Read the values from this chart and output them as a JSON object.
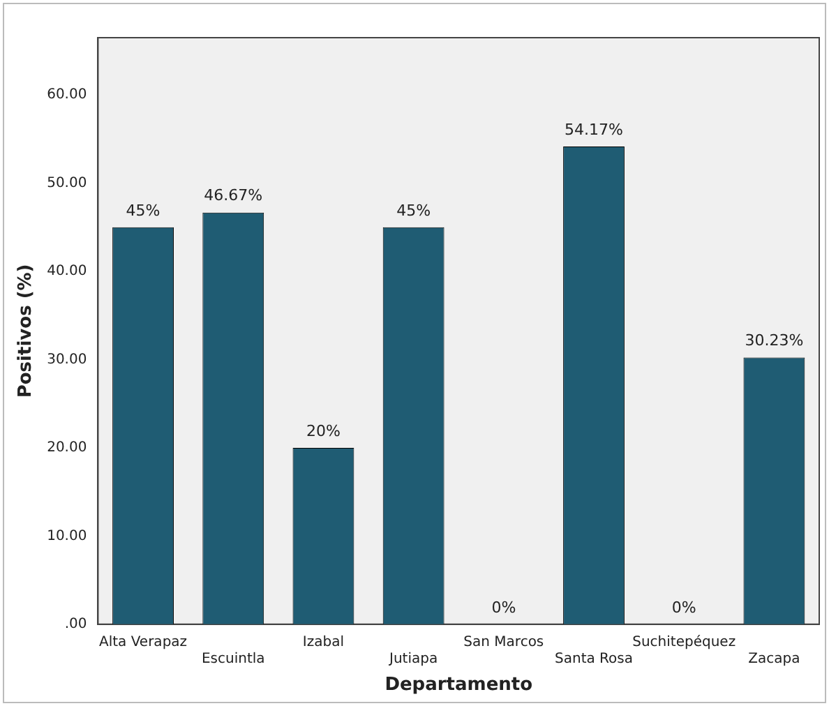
{
  "chart_data": {
    "type": "bar",
    "xlabel": "Departamento",
    "ylabel": "Positivos (%)",
    "categories": [
      "Alta Verapaz",
      "Escuintla",
      "Izabal",
      "Jutiapa",
      "San Marcos",
      "Santa Rosa",
      "Suchitepéquez",
      "Zacapa"
    ],
    "values": [
      45,
      46.67,
      20,
      45,
      0,
      54.17,
      0,
      30.23
    ],
    "value_labels": [
      "45%",
      "46.67%",
      "20%",
      "45%",
      "0%",
      "54.17%",
      "0%",
      "30.23%"
    ],
    "color": "#1f5c73",
    "ylim": [
      0,
      66.5
    ],
    "yticks": [
      {
        "value": 0,
        "label": ".00"
      },
      {
        "value": 10,
        "label": "10.00"
      },
      {
        "value": 20,
        "label": "20.00"
      },
      {
        "value": 30,
        "label": "30.00"
      },
      {
        "value": 40,
        "label": "40.00"
      },
      {
        "value": 50,
        "label": "50.00"
      },
      {
        "value": 60,
        "label": "60.00"
      }
    ],
    "grid": false
  }
}
